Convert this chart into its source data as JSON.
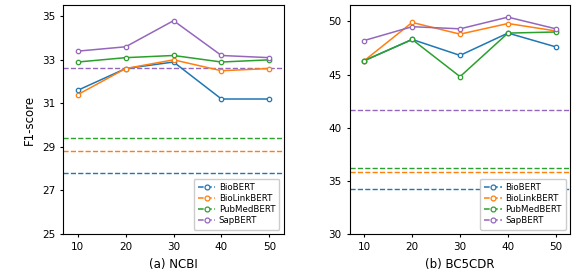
{
  "x": [
    10,
    20,
    30,
    40,
    50
  ],
  "ncbi": {
    "BioBERT": [
      31.6,
      32.6,
      32.9,
      31.2,
      31.2
    ],
    "BioLinkBERT": [
      31.4,
      32.6,
      33.0,
      32.5,
      32.6
    ],
    "PubMedBERT": [
      32.9,
      33.1,
      33.2,
      32.9,
      33.0
    ],
    "SapBERT": [
      33.4,
      33.6,
      34.8,
      33.2,
      33.1
    ]
  },
  "ncbi_baseline": {
    "BioBERT": 27.8,
    "BioLinkBERT": 28.8,
    "PubMedBERT": 29.4,
    "SapBERT": 32.62
  },
  "bc5cdr": {
    "BioBERT": [
      46.3,
      48.3,
      46.8,
      48.9,
      47.6
    ],
    "BioLinkBERT": [
      46.3,
      49.9,
      48.8,
      49.8,
      49.1
    ],
    "PubMedBERT": [
      46.3,
      48.3,
      44.8,
      48.9,
      49.0
    ],
    "SapBERT": [
      48.2,
      49.5,
      49.3,
      50.4,
      49.3
    ]
  },
  "bc5cdr_baseline": {
    "BioBERT": 34.2,
    "BioLinkBERT": 35.8,
    "PubMedBERT": 36.2,
    "SapBERT": 41.7
  },
  "colors": {
    "BioBERT": "#1f77b4",
    "BioLinkBERT": "#ff7f0e",
    "PubMedBERT": "#2ca02c",
    "SapBERT": "#9467bd"
  },
  "ncbi_ylim": [
    25,
    35.5
  ],
  "ncbi_yticks": [
    25,
    27,
    29,
    31,
    33,
    35
  ],
  "bc5cdr_ylim": [
    30,
    51.5
  ],
  "bc5cdr_yticks": [
    30,
    35,
    40,
    45,
    50
  ],
  "xlabel_ncbi": "(a) NCBI",
  "xlabel_bc5cdr": "(b) BC5CDR",
  "ylabel": "F1-score",
  "models": [
    "BioBERT",
    "BioLinkBERT",
    "PubMedBERT",
    "SapBERT"
  ]
}
